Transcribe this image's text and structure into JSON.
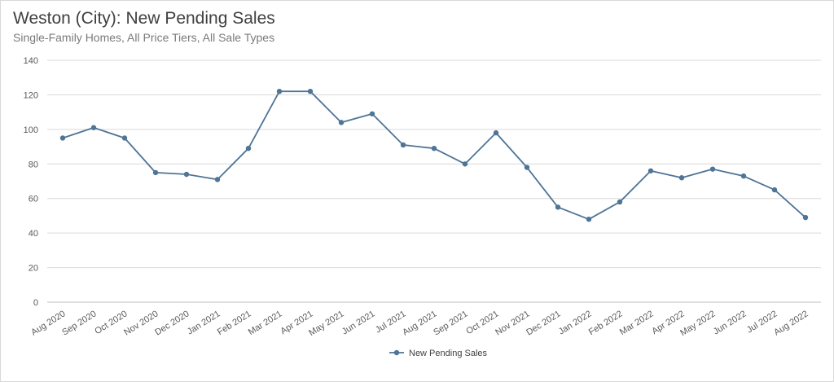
{
  "chart_data": {
    "type": "line",
    "title": "Weston (City): New Pending Sales",
    "subtitle": "Single-Family Homes, All Price Tiers, All Sale Types",
    "xlabel": "",
    "ylabel": "",
    "ylim": [
      0,
      140
    ],
    "yticks": [
      0,
      20,
      40,
      60,
      80,
      100,
      120,
      140
    ],
    "grid": true,
    "legend_position": "bottom-center",
    "categories": [
      "Aug 2020",
      "Sep 2020",
      "Oct 2020",
      "Nov 2020",
      "Dec 2020",
      "Jan 2021",
      "Feb 2021",
      "Mar 2021",
      "Apr 2021",
      "May 2021",
      "Jun 2021",
      "Jul 2021",
      "Aug 2021",
      "Sep 2021",
      "Oct 2021",
      "Nov 2021",
      "Dec 2021",
      "Jan 2022",
      "Feb 2022",
      "Mar 2022",
      "Apr 2022",
      "May 2022",
      "Jun 2022",
      "Jul 2022",
      "Aug 2022"
    ],
    "series": [
      {
        "name": "New Pending Sales",
        "color": "#4e7496",
        "values": [
          95,
          101,
          95,
          75,
          74,
          71,
          89,
          122,
          122,
          104,
          109,
          91,
          89,
          80,
          98,
          78,
          55,
          48,
          58,
          76,
          72,
          77,
          73,
          65,
          49
        ]
      }
    ]
  }
}
